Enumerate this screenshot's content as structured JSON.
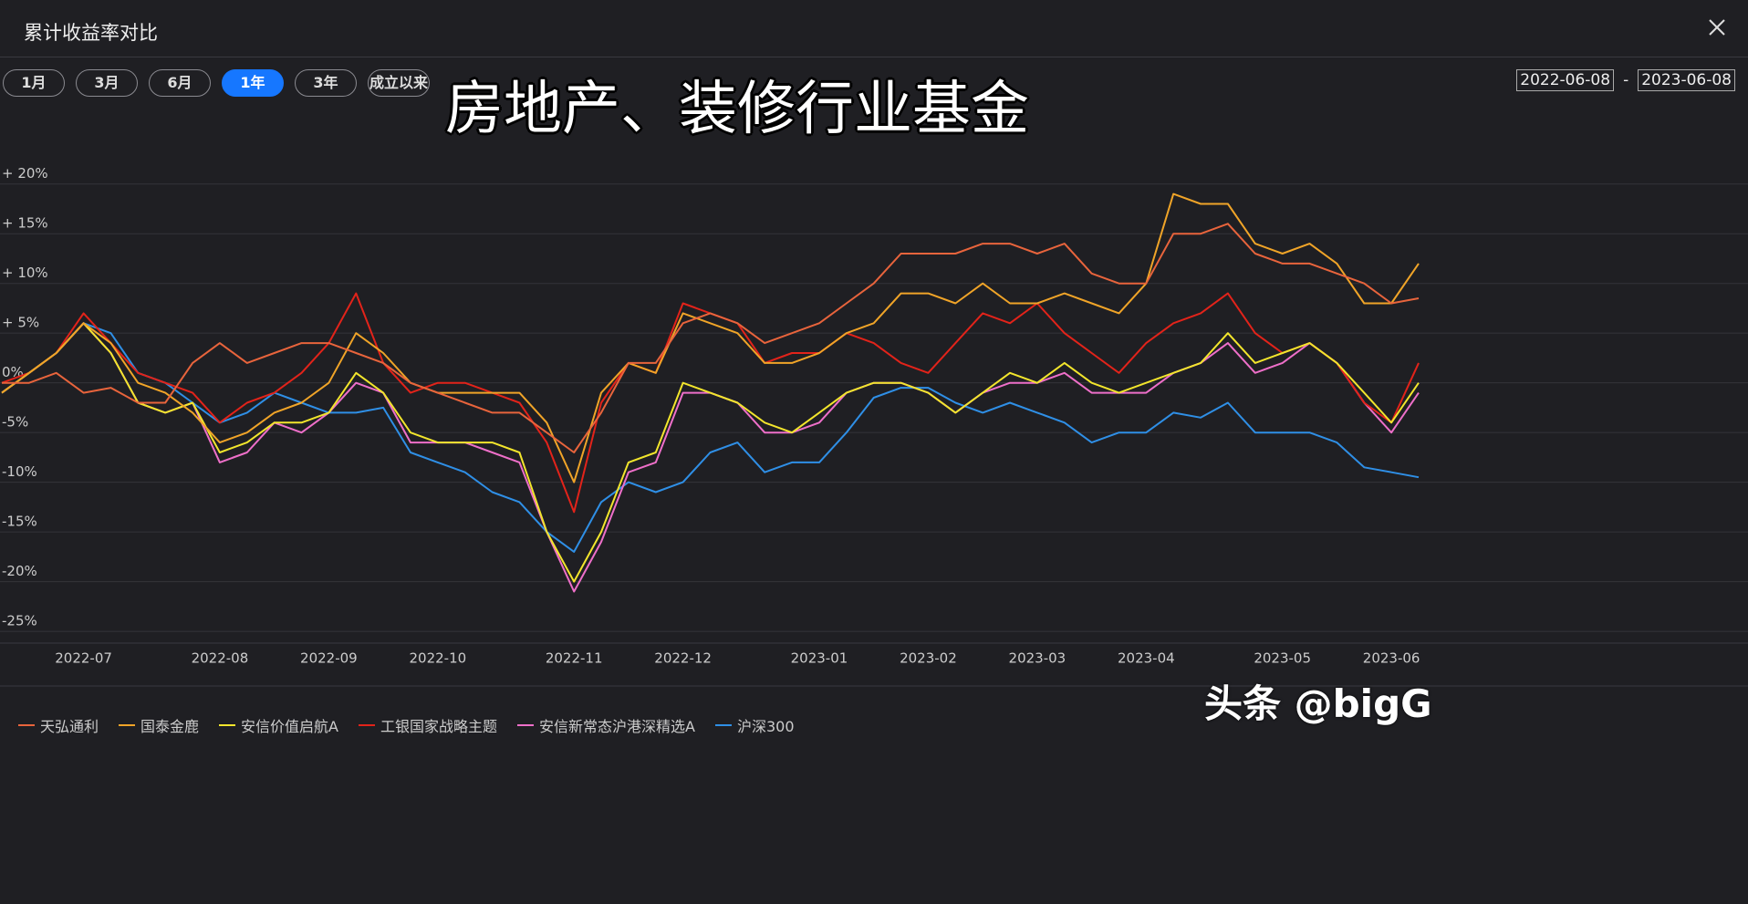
{
  "header": {
    "title": "累计收益率对比"
  },
  "range_buttons": [
    {
      "label": "1月",
      "active": false
    },
    {
      "label": "3月",
      "active": false
    },
    {
      "label": "6月",
      "active": false
    },
    {
      "label": "1年",
      "active": true
    },
    {
      "label": "3年",
      "active": false
    },
    {
      "label": "成立以来",
      "active": false
    }
  ],
  "date_range": {
    "start": "2022-06-08",
    "separator": "-",
    "end": "2023-06-08"
  },
  "watermark": "头条 @bigG",
  "chart_data": {
    "type": "line",
    "title": "房地产、装修行业基金",
    "categories": [
      null,
      null,
      null,
      "2022-07",
      null,
      null,
      null,
      null,
      "2022-08",
      null,
      null,
      null,
      "2022-09",
      null,
      null,
      null,
      "2022-10",
      null,
      null,
      null,
      null,
      "2022-11",
      null,
      null,
      null,
      "2022-12",
      null,
      null,
      null,
      null,
      "2023-01",
      null,
      null,
      null,
      "2023-02",
      null,
      null,
      null,
      "2023-03",
      null,
      null,
      null,
      "2023-04",
      null,
      null,
      null,
      null,
      "2023-05",
      null,
      null,
      null,
      "2023-06",
      null
    ],
    "series": [
      {
        "name": "天弘通利",
        "color": "#e8643c",
        "values": [
          0,
          0,
          1,
          -1,
          -0.5,
          -2,
          -2,
          2,
          4,
          2,
          3,
          4,
          4,
          3,
          2,
          0,
          -1,
          -2,
          -3,
          -3,
          -5,
          -7,
          -3,
          2,
          2,
          6,
          7,
          6,
          4,
          5,
          6,
          8,
          10,
          13,
          13,
          13,
          14,
          14,
          13,
          14,
          11,
          10,
          10,
          15,
          15,
          16,
          13,
          12,
          12,
          11,
          10,
          8,
          8.5
        ]
      },
      {
        "name": "国泰金鹿",
        "color": "#f0a428",
        "values": [
          -1,
          1,
          3,
          6,
          4,
          0,
          -1,
          -3,
          -6,
          -5,
          -3,
          -2,
          0,
          5,
          3,
          0,
          -1,
          -1,
          -1,
          -1,
          -4,
          -10,
          -1,
          2,
          1,
          7,
          6,
          5,
          2,
          2,
          3,
          5,
          6,
          9,
          9,
          8,
          10,
          8,
          8,
          9,
          8,
          7,
          10,
          19,
          18,
          18,
          14,
          13,
          14,
          12,
          8,
          8,
          12
        ]
      },
      {
        "name": "安信价值启航A",
        "color": "#f2e52c",
        "values": [
          -1,
          1,
          3,
          6,
          3,
          -2,
          -3,
          -2,
          -7,
          -6,
          -4,
          -4,
          -3,
          1,
          -1,
          -5,
          -6,
          -6,
          -6,
          -7,
          -15,
          -20,
          -15,
          -8,
          -7,
          0,
          -1,
          -2,
          -4,
          -5,
          -3,
          -1,
          0,
          0,
          -1,
          -3,
          -1,
          1,
          0,
          2,
          0,
          -1,
          0,
          1,
          2,
          5,
          2,
          3,
          4,
          2,
          -1,
          -4,
          0
        ]
      },
      {
        "name": "工银国家战略主题",
        "color": "#e2231a",
        "values": [
          0,
          1,
          3,
          7,
          4,
          1,
          0,
          -1,
          -4,
          -2,
          -1,
          1,
          4,
          9,
          2,
          -1,
          0,
          0,
          -1,
          -2,
          -6,
          -13,
          -2,
          2,
          1,
          8,
          7,
          6,
          2,
          3,
          3,
          5,
          4,
          2,
          1,
          4,
          7,
          6,
          8,
          5,
          3,
          1,
          4,
          6,
          7,
          9,
          5,
          3,
          4,
          2,
          -2,
          -4,
          2
        ]
      },
      {
        "name": "安信新常态沪港深精选A",
        "color": "#ee6fc9",
        "values": [
          -1,
          1,
          3,
          6,
          3,
          -2,
          -3,
          -2,
          -8,
          -7,
          -4,
          -5,
          -3,
          0,
          -1,
          -6,
          -6,
          -6,
          -7,
          -8,
          -15,
          -21,
          -16,
          -9,
          -8,
          -1,
          -1,
          -2,
          -5,
          -5,
          -4,
          -1,
          0,
          0,
          -1,
          -3,
          -1,
          0,
          0,
          1,
          -1,
          -1,
          -1,
          1,
          2,
          4,
          1,
          2,
          4,
          2,
          -2,
          -5,
          -1
        ]
      },
      {
        "name": "沪深300",
        "color": "#2f8fe6",
        "values": [
          -1,
          1,
          3,
          6,
          5,
          1,
          0,
          -2,
          -4,
          -3,
          -1,
          -2,
          -3,
          -3,
          -2.5,
          -7,
          -8,
          -9,
          -11,
          -12,
          -15,
          -17,
          -12,
          -10,
          -11,
          -10,
          -7,
          -6,
          -9,
          -8,
          -8,
          -5,
          -1.5,
          -0.5,
          -0.5,
          -2,
          -3,
          -2,
          -3,
          -4,
          -6,
          -5,
          -5,
          -3,
          -3.5,
          -2,
          -5,
          -5,
          -5,
          -6,
          -8.5,
          -9,
          -9.5
        ]
      }
    ],
    "ylim": [
      -26,
      27.5
    ],
    "yticks": [
      {
        "value": -25,
        "label": "-25%"
      },
      {
        "value": -20,
        "label": "-20%"
      },
      {
        "value": -15,
        "label": "-15%"
      },
      {
        "value": -10,
        "label": "-10%"
      },
      {
        "value": -5,
        "label": "-5%"
      },
      {
        "value": 0,
        "label": "0%"
      },
      {
        "value": 5,
        "label": "+ 5%"
      },
      {
        "value": 10,
        "label": "+ 10%"
      },
      {
        "value": 15,
        "label": "+ 15%"
      },
      {
        "value": 20,
        "label": "+ 20%"
      }
    ],
    "grid": true
  }
}
